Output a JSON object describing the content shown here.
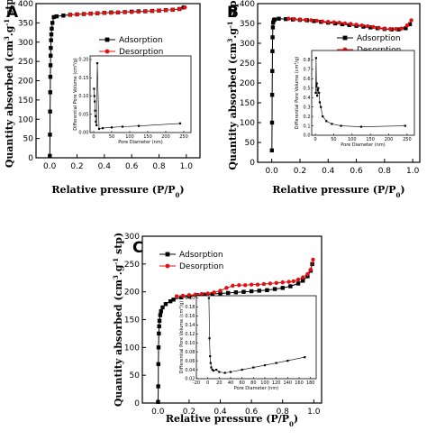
{
  "colors": {
    "adsorption": "#000000",
    "desorption": "#e01010",
    "axis": "#000000"
  },
  "chart_data": [
    {
      "type": "line",
      "panel": "A",
      "xlabel": "Relative pressure (P/P0)",
      "ylabel": "Quantity absorbed (cm3.g-1 stp)",
      "xlim": [
        -0.1,
        1.1
      ],
      "ylim": [
        0,
        400
      ],
      "xticks": [
        "0.0",
        "0.2",
        "0.4",
        "0.6",
        "0.8",
        "1.0"
      ],
      "yticks": [
        "0",
        "50",
        "100",
        "150",
        "200",
        "250",
        "300",
        "350",
        "400"
      ],
      "legend_position": "right",
      "series": [
        {
          "name": "Adsorption",
          "x": [
            0.001,
            0.002,
            0.003,
            0.004,
            0.005,
            0.006,
            0.007,
            0.008,
            0.01,
            0.012,
            0.015,
            0.02,
            0.03,
            0.05,
            0.1,
            0.15,
            0.2,
            0.25,
            0.3,
            0.35,
            0.4,
            0.45,
            0.5,
            0.55,
            0.6,
            0.65,
            0.7,
            0.75,
            0.8,
            0.85,
            0.9,
            0.95,
            0.98
          ],
          "y": [
            5,
            60,
            120,
            170,
            210,
            240,
            265,
            285,
            305,
            320,
            335,
            350,
            365,
            367,
            369,
            371,
            372,
            373,
            374,
            375,
            376,
            377,
            377,
            378,
            379,
            380,
            380,
            381,
            382,
            383,
            384,
            386,
            390
          ]
        },
        {
          "name": "Desorption",
          "x": [
            0.99,
            0.95,
            0.9,
            0.85,
            0.8,
            0.75,
            0.7,
            0.65,
            0.6,
            0.55,
            0.5,
            0.45,
            0.4,
            0.35,
            0.3,
            0.25,
            0.2,
            0.15
          ],
          "y": [
            390,
            386,
            384,
            383,
            382,
            381,
            380,
            379,
            378,
            378,
            377,
            376,
            376,
            375,
            374,
            373,
            372,
            371
          ]
        }
      ],
      "inset": {
        "xlabel": "Pore Diameter (nm)",
        "ylabel": "Differential Pore Volume",
        "xlim": [
          -10,
          270
        ],
        "ylim": [
          0,
          0.21
        ],
        "xticks": [
          "0",
          "50",
          "100",
          "150",
          "200",
          "250"
        ],
        "yticks": [
          "0.00",
          "0.05",
          "0.10",
          "0.15",
          "0.20"
        ],
        "x": [
          1,
          2,
          3,
          4,
          5,
          6,
          8,
          10,
          15,
          25,
          50,
          80,
          125,
          240
        ],
        "y": [
          0.12,
          0.1,
          0.085,
          0.06,
          0.045,
          0.03,
          0.02,
          0.19,
          0.01,
          0.012,
          0.014,
          0.016,
          0.018,
          0.025
        ]
      }
    },
    {
      "type": "line",
      "panel": "B",
      "xlabel": "Relative pressure (P/P0)",
      "ylabel": "Quantity absorbed (cm3.g-1 stp)",
      "xlim": [
        -0.1,
        1.05
      ],
      "ylim": [
        0,
        400
      ],
      "xticks": [
        "0.0",
        "0.2",
        "0.4",
        "0.6",
        "0.8",
        "1.0"
      ],
      "yticks": [
        "0",
        "50",
        "100",
        "150",
        "200",
        "250",
        "300",
        "350",
        "400"
      ],
      "legend_position": "right",
      "series": [
        {
          "name": "Adsorption",
          "x": [
            0.001,
            0.002,
            0.003,
            0.004,
            0.005,
            0.006,
            0.008,
            0.01,
            0.015,
            0.02,
            0.05,
            0.1,
            0.15,
            0.2,
            0.25,
            0.3,
            0.35,
            0.4,
            0.45,
            0.5,
            0.55,
            0.6,
            0.65,
            0.7,
            0.75,
            0.8,
            0.85,
            0.9,
            0.95,
            0.98
          ],
          "y": [
            30,
            100,
            170,
            230,
            280,
            315,
            340,
            352,
            358,
            360,
            362,
            361,
            360,
            359,
            358,
            356,
            354,
            352,
            350,
            348,
            346,
            344,
            342,
            340,
            338,
            336,
            335,
            335,
            338,
            348
          ]
        },
        {
          "name": "Desorption",
          "x": [
            0.99,
            0.96,
            0.92,
            0.88,
            0.84,
            0.8,
            0.76,
            0.72,
            0.68,
            0.64,
            0.6,
            0.56,
            0.52,
            0.48,
            0.44,
            0.4,
            0.36,
            0.32,
            0.28,
            0.24,
            0.2,
            0.16,
            0.12
          ],
          "y": [
            358,
            345,
            337,
            336,
            336,
            337,
            339,
            341,
            343,
            345,
            347,
            349,
            350,
            352,
            353,
            354,
            355,
            357,
            358,
            359,
            360,
            361,
            362
          ]
        }
      ],
      "inset": {
        "xlabel": "Pore Diameter (nm)",
        "ylabel": "Differential Pore Volume (cm3/g)",
        "xlim": [
          -10,
          270
        ],
        "ylim": [
          0,
          0.9
        ],
        "xticks": [
          "0",
          "50",
          "100",
          "150",
          "200",
          "250"
        ],
        "yticks": [
          "0.0",
          "0.1",
          "0.2",
          "0.3",
          "0.4",
          "0.5",
          "0.6",
          "0.7",
          "0.8"
        ],
        "x": [
          1,
          2,
          3,
          4,
          5,
          6,
          8,
          10,
          12,
          15,
          20,
          30,
          45,
          70,
          125,
          245
        ],
        "y": [
          0.45,
          0.82,
          0.52,
          0.55,
          0.42,
          0.48,
          0.5,
          0.45,
          0.35,
          0.3,
          0.2,
          0.15,
          0.12,
          0.1,
          0.09,
          0.1
        ]
      }
    },
    {
      "type": "line",
      "panel": "C",
      "xlabel": "Relative pressure (P/P0)",
      "ylabel": "Quantity absorbed (cm3.g-1 stp)",
      "xlim": [
        -0.1,
        1.05
      ],
      "ylim": [
        0,
        300
      ],
      "xticks": [
        "0.0",
        "0.2",
        "0.4",
        "0.6",
        "0.8",
        "1.0"
      ],
      "yticks": [
        "0",
        "50",
        "100",
        "150",
        "200",
        "250",
        "300"
      ],
      "legend_position": "top-left",
      "series": [
        {
          "name": "Adsorption",
          "x": [
            0.001,
            0.002,
            0.003,
            0.004,
            0.006,
            0.008,
            0.01,
            0.015,
            0.02,
            0.03,
            0.05,
            0.08,
            0.1,
            0.15,
            0.2,
            0.25,
            0.3,
            0.35,
            0.4,
            0.45,
            0.5,
            0.55,
            0.6,
            0.65,
            0.7,
            0.75,
            0.8,
            0.85,
            0.9,
            0.93,
            0.96,
            0.98,
            0.99
          ],
          "y": [
            2,
            30,
            70,
            100,
            125,
            138,
            148,
            158,
            165,
            172,
            178,
            183,
            186,
            190,
            192,
            194,
            195,
            196,
            197,
            198,
            199,
            200,
            201,
            202,
            203,
            205,
            207,
            210,
            215,
            220,
            228,
            238,
            250
          ]
        },
        {
          "name": "Desorption",
          "x": [
            0.995,
            0.98,
            0.96,
            0.93,
            0.9,
            0.87,
            0.84,
            0.8,
            0.76,
            0.72,
            0.68,
            0.64,
            0.6,
            0.56,
            0.52,
            0.48,
            0.44,
            0.4,
            0.36,
            0.32,
            0.28,
            0.24,
            0.2,
            0.16,
            0.12
          ],
          "y": [
            258,
            240,
            232,
            226,
            222,
            219,
            218,
            217,
            216,
            215,
            214,
            213,
            213,
            212,
            212,
            211,
            207,
            202,
            199,
            197,
            196,
            195,
            194,
            193,
            192
          ]
        }
      ],
      "inset": {
        "xlabel": "Pore Diameter (nm)",
        "ylabel": "Differential Pore Volume (cm3/g)",
        "xlim": [
          -20,
          190
        ],
        "ylim": [
          0.02,
          0.205
        ],
        "xticks": [
          "-20",
          "0",
          "20",
          "40",
          "60",
          "80",
          "100",
          "120",
          "140",
          "160",
          "180"
        ],
        "yticks": [
          "0.02",
          "0.04",
          "0.06",
          "0.08",
          "0.10",
          "0.12",
          "0.14",
          "0.16",
          "0.18",
          "0.20"
        ],
        "x": [
          2,
          3,
          4,
          5,
          6,
          8,
          10,
          15,
          20,
          30,
          40,
          60,
          80,
          100,
          120,
          140,
          170
        ],
        "y": [
          0.2,
          0.11,
          0.07,
          0.055,
          0.045,
          0.04,
          0.038,
          0.04,
          0.035,
          0.033,
          0.035,
          0.04,
          0.045,
          0.05,
          0.055,
          0.06,
          0.068
        ]
      }
    }
  ],
  "panels": {
    "a": {
      "letter": "A",
      "ylabel_parts": [
        "Quantity absorbed (cm",
        "3",
        ".g",
        "-1",
        " stp)"
      ],
      "xlabel_parts": [
        "Relative pressure (P/P",
        "0",
        ")"
      ],
      "legend": [
        "Adsorption",
        "Desorption"
      ],
      "inset_ylabel": "Differential Pore Volume (cm³/g)",
      "inset_xlabel": "Pore Diameter (nm)"
    },
    "b": {
      "letter": "B",
      "ylabel_parts": [
        "Quantity absorbed (cm",
        "3",
        ".g",
        "-1",
        " stp)"
      ],
      "xlabel_parts": [
        "Relative pressure (P/P",
        "0",
        ")"
      ],
      "legend": [
        "Adsorption",
        "Desorption"
      ],
      "inset_ylabel": "Differential Pore Volume (cm³/g)",
      "inset_xlabel": "Pore Diameter (nm)"
    },
    "c": {
      "letter": "C",
      "ylabel_parts": [
        "Quantity absorbed (cm",
        "3",
        ".g",
        "-1",
        " stp)"
      ],
      "xlabel_parts": [
        "Relative pressure (P/P",
        "0",
        ")"
      ],
      "legend": [
        "Adsorption",
        "Desorption"
      ],
      "inset_ylabel": "Differential Pore Volume (cm³/g)",
      "inset_xlabel": "Pore Diameter (nm)"
    }
  }
}
